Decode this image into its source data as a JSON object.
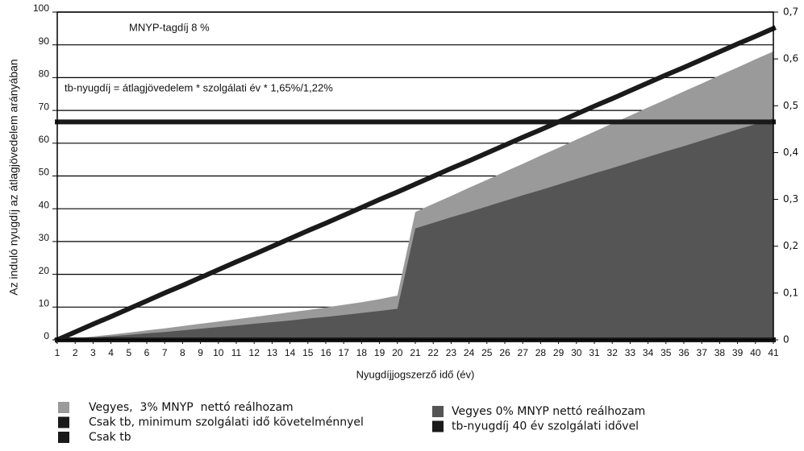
{
  "chart_data": {
    "type": "line",
    "y_label": "Az induló nyugdíj az átlagjövedelem arányában",
    "x_label": "Nyugdíjjogszerző idő (év)",
    "annotations": [
      "MNYP-tagdíj 8 %",
      "tb-nyugdíj = átlagjövedelem *  szolgálati év * 1,65%/1,22%"
    ],
    "x": [
      1,
      2,
      3,
      4,
      5,
      6,
      7,
      8,
      9,
      10,
      11,
      12,
      13,
      14,
      15,
      16,
      17,
      18,
      19,
      20,
      21,
      22,
      23,
      24,
      25,
      26,
      27,
      28,
      29,
      30,
      31,
      32,
      33,
      34,
      35,
      36,
      37,
      38,
      39,
      40,
      41
    ],
    "xlim": [
      1,
      41
    ],
    "xticks": [
      1,
      2,
      3,
      4,
      5,
      6,
      7,
      8,
      9,
      10,
      11,
      12,
      13,
      14,
      15,
      16,
      17,
      18,
      19,
      20,
      21,
      22,
      23,
      24,
      25,
      26,
      27,
      28,
      29,
      30,
      31,
      32,
      33,
      34,
      35,
      36,
      37,
      38,
      39,
      40,
      41
    ],
    "ylim": [
      0,
      100
    ],
    "yticks": [
      0,
      10,
      20,
      30,
      40,
      50,
      60,
      70,
      80,
      90,
      100
    ],
    "y2lim": [
      0,
      0.7
    ],
    "y2ticks": [
      0,
      {
        "value": 0.1,
        "label": "0,1"
      },
      {
        "value": 0.2,
        "label": "0,2"
      },
      {
        "value": 0.3,
        "label": "0,3"
      },
      {
        "value": 0.4,
        "label": "0,4"
      },
      {
        "value": 0.5,
        "label": "0,5"
      },
      {
        "value": 0.6,
        "label": "0,6"
      },
      {
        "value": 0.7,
        "label": "0,7"
      }
    ],
    "grid": true,
    "series": [
      {
        "name": "Vegyes,  3% MNYP  nettó reálhozam",
        "type": "area",
        "color": "#9a9a9a",
        "values": [
          0,
          0.5,
          1,
          1.6,
          2.2,
          2.9,
          3.5,
          4.2,
          4.9,
          5.6,
          6.3,
          7,
          7.7,
          8.4,
          9.1,
          9.9,
          10.7,
          11.5,
          12.4,
          13.5,
          39,
          41.5,
          43.9,
          46.4,
          48.8,
          51.3,
          53.7,
          56.2,
          58.6,
          61.1,
          63.5,
          66,
          68.4,
          70.9,
          73.3,
          75.8,
          78.2,
          80.7,
          83.1,
          85.6,
          88
        ]
      },
      {
        "name": "Csak tb, minimum szolgálati idő követelménnyel",
        "type": "line",
        "color": "#1a1a1a",
        "values": [
          0,
          0,
          0,
          0,
          0,
          0,
          0,
          0,
          0,
          0,
          0,
          0,
          0,
          0,
          0,
          0,
          0,
          0,
          0,
          0,
          0,
          0,
          0,
          0,
          0,
          0,
          0,
          0,
          0,
          0,
          0,
          0,
          0,
          0,
          0,
          0,
          0,
          0,
          0,
          0,
          0
        ]
      },
      {
        "name": "Csak tb",
        "type": "line",
        "color": "#1a1a1a",
        "values": [
          0,
          2.4,
          4.8,
          7.1,
          9.5,
          11.9,
          14.3,
          16.6,
          19,
          21.4,
          23.8,
          26.1,
          28.5,
          30.9,
          33.3,
          35.6,
          38,
          40.4,
          42.8,
          45.1,
          47.5,
          49.9,
          52.3,
          54.6,
          57,
          59.4,
          61.8,
          64.1,
          66.5,
          68.9,
          71.3,
          73.6,
          76,
          78.4,
          80.8,
          83.1,
          85.5,
          87.9,
          90.3,
          92.6,
          95
        ]
      },
      {
        "name": "Vegyes 0% MNYP nettó reálhozam",
        "type": "area",
        "color": "#555555",
        "values": [
          0,
          0.3,
          0.7,
          1.1,
          1.5,
          2,
          2.4,
          2.9,
          3.4,
          3.9,
          4.4,
          4.9,
          5.4,
          5.9,
          6.5,
          7,
          7.6,
          8.2,
          8.8,
          9.5,
          34,
          35.7,
          37.4,
          39,
          40.7,
          42.4,
          44.1,
          45.7,
          47.4,
          49.1,
          50.8,
          52.4,
          54.1,
          55.8,
          57.5,
          59.1,
          60.8,
          62.5,
          64.2,
          65.8,
          67.5
        ]
      },
      {
        "name": "tb-nyugdíj 40 év szolgálati idővel",
        "type": "line",
        "color": "#1a1a1a",
        "values": [
          66.5,
          66.5,
          66.5,
          66.5,
          66.5,
          66.5,
          66.5,
          66.5,
          66.5,
          66.5,
          66.5,
          66.5,
          66.5,
          66.5,
          66.5,
          66.5,
          66.5,
          66.5,
          66.5,
          66.5,
          66.5,
          66.5,
          66.5,
          66.5,
          66.5,
          66.5,
          66.5,
          66.5,
          66.5,
          66.5,
          66.5,
          66.5,
          66.5,
          66.5,
          66.5,
          66.5,
          66.5,
          66.5,
          66.5,
          66.5,
          66.5
        ]
      }
    ]
  }
}
